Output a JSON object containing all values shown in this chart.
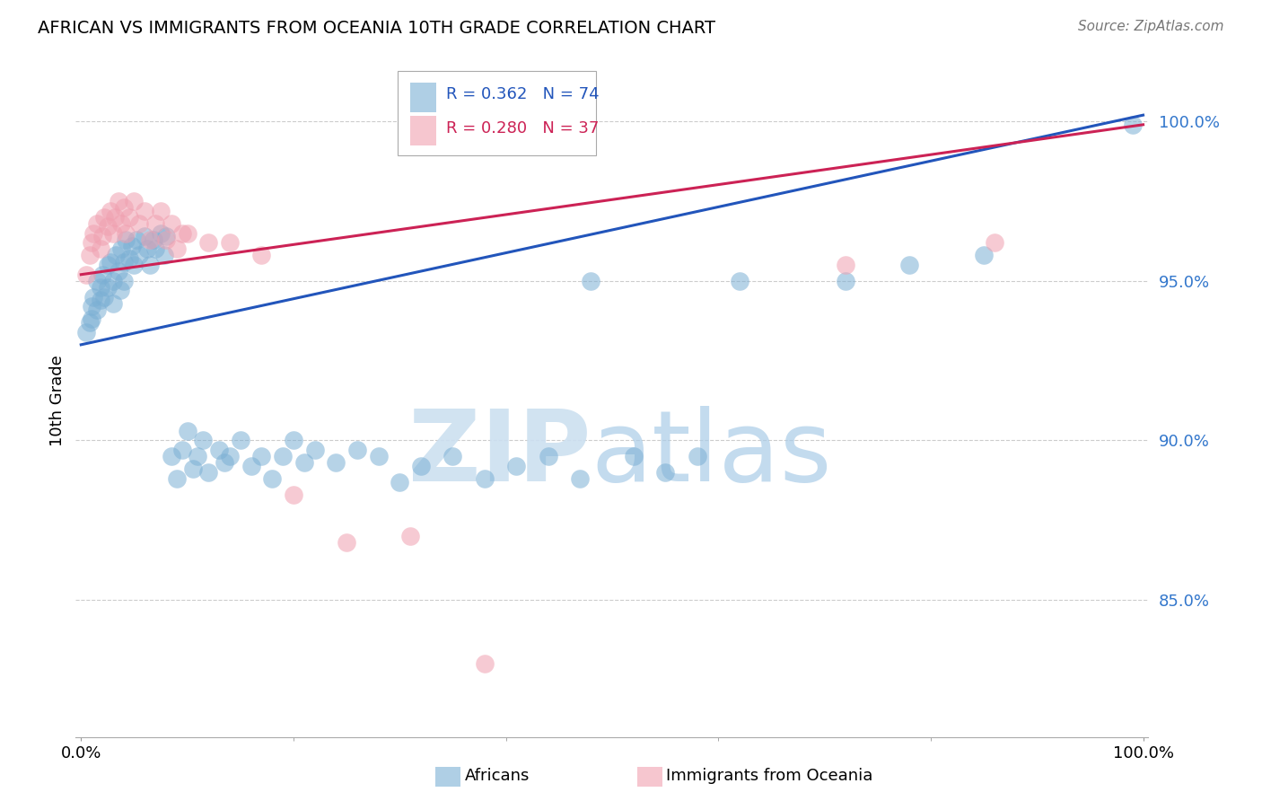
{
  "title": "AFRICAN VS IMMIGRANTS FROM OCEANIA 10TH GRADE CORRELATION CHART",
  "source": "Source: ZipAtlas.com",
  "ylabel": "10th Grade",
  "blue_color": "#7bafd4",
  "pink_color": "#f0a0b0",
  "line_blue": "#2255bb",
  "line_pink": "#cc2255",
  "blue_r": "0.362",
  "blue_n": "74",
  "pink_r": "0.280",
  "pink_n": "37",
  "blue_line_y0": 0.93,
  "blue_line_y1": 1.002,
  "pink_line_y0": 0.952,
  "pink_line_y1": 0.999,
  "ymin": 0.807,
  "ymax": 1.018,
  "xmin": -0.005,
  "xmax": 1.005,
  "ytick_positions": [
    0.85,
    0.9,
    0.95,
    1.0
  ],
  "ytick_labels": [
    "85.0%",
    "90.0%",
    "95.0%",
    "100.0%"
  ],
  "xtick_positions": [
    0.0,
    1.0
  ],
  "xtick_labels": [
    "0.0%",
    "100.0%"
  ],
  "blue_x": [
    0.005,
    0.008,
    0.01,
    0.01,
    0.012,
    0.015,
    0.015,
    0.018,
    0.018,
    0.02,
    0.022,
    0.025,
    0.025,
    0.028,
    0.03,
    0.03,
    0.033,
    0.035,
    0.037,
    0.038,
    0.04,
    0.04,
    0.042,
    0.045,
    0.048,
    0.05,
    0.052,
    0.055,
    0.06,
    0.062,
    0.065,
    0.068,
    0.07,
    0.075,
    0.078,
    0.08,
    0.085,
    0.09,
    0.095,
    0.1,
    0.105,
    0.11,
    0.115,
    0.12,
    0.13,
    0.135,
    0.14,
    0.15,
    0.16,
    0.17,
    0.18,
    0.19,
    0.2,
    0.21,
    0.22,
    0.24,
    0.26,
    0.28,
    0.3,
    0.32,
    0.35,
    0.38,
    0.41,
    0.44,
    0.47,
    0.48,
    0.52,
    0.55,
    0.58,
    0.62,
    0.72,
    0.78,
    0.85,
    0.99
  ],
  "blue_y": [
    0.934,
    0.937,
    0.942,
    0.938,
    0.945,
    0.941,
    0.95,
    0.944,
    0.948,
    0.952,
    0.945,
    0.955,
    0.948,
    0.956,
    0.95,
    0.943,
    0.958,
    0.953,
    0.947,
    0.96,
    0.956,
    0.95,
    0.963,
    0.957,
    0.961,
    0.955,
    0.963,
    0.958,
    0.964,
    0.96,
    0.955,
    0.963,
    0.96,
    0.965,
    0.958,
    0.964,
    0.895,
    0.888,
    0.897,
    0.903,
    0.891,
    0.895,
    0.9,
    0.89,
    0.897,
    0.893,
    0.895,
    0.9,
    0.892,
    0.895,
    0.888,
    0.895,
    0.9,
    0.893,
    0.897,
    0.893,
    0.897,
    0.895,
    0.887,
    0.892,
    0.895,
    0.888,
    0.892,
    0.895,
    0.888,
    0.95,
    0.895,
    0.89,
    0.895,
    0.95,
    0.95,
    0.955,
    0.958,
    0.999
  ],
  "pink_x": [
    0.005,
    0.008,
    0.01,
    0.012,
    0.015,
    0.018,
    0.02,
    0.022,
    0.025,
    0.028,
    0.03,
    0.032,
    0.035,
    0.038,
    0.04,
    0.042,
    0.045,
    0.05,
    0.055,
    0.06,
    0.065,
    0.07,
    0.075,
    0.08,
    0.085,
    0.09,
    0.095,
    0.1,
    0.12,
    0.14,
    0.17,
    0.2,
    0.25,
    0.31,
    0.38,
    0.72,
    0.86
  ],
  "pink_y": [
    0.952,
    0.958,
    0.962,
    0.965,
    0.968,
    0.96,
    0.964,
    0.97,
    0.967,
    0.972,
    0.965,
    0.97,
    0.975,
    0.968,
    0.973,
    0.965,
    0.97,
    0.975,
    0.968,
    0.972,
    0.963,
    0.968,
    0.972,
    0.963,
    0.968,
    0.96,
    0.965,
    0.965,
    0.962,
    0.962,
    0.958,
    0.883,
    0.868,
    0.87,
    0.83,
    0.955,
    0.962
  ],
  "watermark_zip_color": "#cce0f0",
  "watermark_atlas_color": "#aacce8"
}
